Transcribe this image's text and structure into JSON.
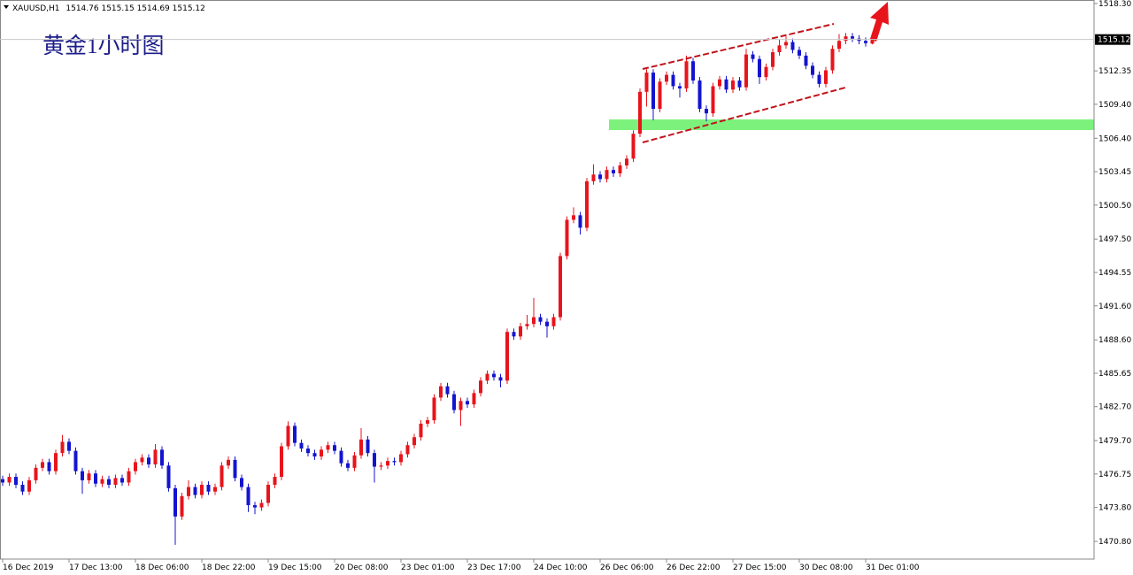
{
  "chart_data": {
    "type": "candlestick",
    "title": "黄金1小时图",
    "symbol": "XAUUSD,H1",
    "up_color": "#e8141c",
    "down_color": "#1414d0",
    "support_color": "#7cf27c",
    "ylim": [
      1469.24,
      1518.61
    ],
    "yticks": [
      {
        "value": 1518.3,
        "label": "1518.30"
      },
      1512.35,
      {
        "value": 1509.4,
        "label": "1509.40"
      },
      {
        "value": 1506.4,
        "label": "1506.40"
      },
      1503.45,
      {
        "value": 1500.5,
        "label": "1500.50"
      },
      {
        "value": 1497.5,
        "label": "1497.50"
      },
      1494.55,
      {
        "value": 1491.6,
        "label": "1491.60"
      },
      {
        "value": 1488.6,
        "label": "1488.60"
      },
      1485.65,
      {
        "value": 1482.7,
        "label": "1482.70"
      },
      {
        "value": 1479.7,
        "label": "1479.70"
      },
      1476.75,
      {
        "value": 1473.8,
        "label": "1473.80"
      },
      {
        "value": 1470.8,
        "label": "1470.80"
      }
    ],
    "categories": [
      "16 Dec 2019",
      null,
      null,
      null,
      null,
      null,
      null,
      null,
      null,
      null,
      "17 Dec 13:00",
      null,
      null,
      null,
      null,
      null,
      null,
      null,
      null,
      null,
      "18 Dec 06:00",
      null,
      null,
      null,
      null,
      null,
      null,
      null,
      null,
      null,
      "18 Dec 22:00",
      null,
      null,
      null,
      null,
      null,
      null,
      null,
      null,
      null,
      "19 Dec 15:00",
      null,
      null,
      null,
      null,
      null,
      null,
      null,
      null,
      null,
      "20 Dec 08:00",
      null,
      null,
      null,
      null,
      null,
      null,
      null,
      null,
      null,
      "23 Dec 01:00",
      null,
      null,
      null,
      null,
      null,
      null,
      null,
      null,
      null,
      "23 Dec 17:00",
      null,
      null,
      null,
      null,
      null,
      null,
      null,
      null,
      null,
      "24 Dec 10:00",
      null,
      null,
      null,
      null,
      null,
      null,
      null,
      null,
      null,
      "26 Dec 06:00",
      null,
      null,
      null,
      null,
      null,
      null,
      null,
      null,
      null,
      "26 Dec 22:00",
      null,
      null,
      null,
      null,
      null,
      null,
      null,
      null,
      null,
      "27 Dec 15:00",
      null,
      null,
      null,
      null,
      null,
      null,
      null,
      null,
      null,
      "30 Dec 08:00",
      null,
      null,
      null,
      null,
      null,
      null,
      null,
      null,
      null,
      "31 Dec 01:00",
      null
    ],
    "open": [
      1476.3,
      1476.0,
      1476.5,
      1475.8,
      1475.2,
      1476.2,
      1477.3,
      1477.8,
      1477.0,
      1478.6,
      1479.6,
      1478.8,
      1477.0,
      1476.2,
      1476.8,
      1475.9,
      1476.3,
      1475.8,
      1476.4,
      1476.0,
      1477.0,
      1477.8,
      1478.2,
      1477.6,
      1478.9,
      1477.5,
      1475.5,
      1473.0,
      1474.8,
      1475.6,
      1474.9,
      1475.8,
      1475.2,
      1475.6,
      1477.5,
      1478.0,
      1476.4,
      1475.6,
      1474.0,
      1473.8,
      1474.2,
      1475.8,
      1476.5,
      1479.2,
      1481.0,
      1479.5,
      1479.0,
      1478.6,
      1478.3,
      1478.9,
      1479.3,
      1478.8,
      1477.7,
      1477.3,
      1478.4,
      1479.8,
      1478.6,
      1477.4,
      1477.5,
      1477.9,
      1477.8,
      1478.5,
      1479.3,
      1480.0,
      1481.2,
      1481.5,
      1483.5,
      1484.5,
      1483.8,
      1482.4,
      1483.2,
      1482.9,
      1483.9,
      1485.0,
      1485.6,
      1485.3,
      1485.0,
      1489.3,
      1488.9,
      1489.8,
      1490.0,
      1490.6,
      1490.2,
      1489.8,
      1490.6,
      1496.0,
      1499.2,
      1499.6,
      1498.5,
      1502.6,
      1503.2,
      1502.8,
      1503.6,
      1503.3,
      1504.0,
      1504.6,
      1506.8,
      1510.5,
      1512.2,
      1509.0,
      1511.4,
      1512.0,
      1511.0,
      1510.8,
      1513.2,
      1511.5,
      1509.0,
      1508.6,
      1511.0,
      1511.6,
      1510.7,
      1511.5,
      1510.9,
      1513.8,
      1513.4,
      1511.8,
      1512.7,
      1514.0,
      1514.6,
      1514.9,
      1514.2,
      1513.7,
      1512.8,
      1512.0,
      1511.2,
      1512.4,
      1514.3,
      1515.0,
      1515.4,
      1515.2,
      1515.0,
      1514.76
    ],
    "high": [
      1476.6,
      1476.8,
      1476.8,
      1476.1,
      1476.5,
      1477.6,
      1478.1,
      1478.1,
      1478.9,
      1480.2,
      1479.9,
      1479.1,
      1477.3,
      1477.1,
      1477.1,
      1476.6,
      1476.6,
      1476.7,
      1476.7,
      1477.3,
      1478.1,
      1478.5,
      1478.5,
      1479.4,
      1479.2,
      1477.8,
      1475.8,
      1475.1,
      1476.2,
      1475.9,
      1476.1,
      1476.1,
      1475.9,
      1477.8,
      1478.3,
      1478.3,
      1476.7,
      1475.9,
      1474.3,
      1474.5,
      1476.1,
      1476.8,
      1479.5,
      1481.4,
      1481.3,
      1479.8,
      1479.3,
      1478.9,
      1479.2,
      1479.6,
      1479.6,
      1479.1,
      1478.0,
      1478.7,
      1480.8,
      1480.1,
      1478.9,
      1477.8,
      1478.2,
      1478.2,
      1478.8,
      1479.6,
      1480.3,
      1481.5,
      1481.8,
      1483.8,
      1484.8,
      1484.8,
      1484.1,
      1483.5,
      1483.5,
      1484.2,
      1485.3,
      1485.9,
      1485.9,
      1485.6,
      1489.6,
      1489.6,
      1490.1,
      1490.8,
      1492.3,
      1490.9,
      1490.5,
      1490.9,
      1496.3,
      1499.5,
      1500.3,
      1499.9,
      1502.9,
      1504.1,
      1503.5,
      1503.9,
      1503.9,
      1504.3,
      1504.9,
      1507.1,
      1510.8,
      1512.5,
      1512.5,
      1511.7,
      1512.3,
      1512.3,
      1511.3,
      1513.7,
      1513.5,
      1511.8,
      1509.3,
      1511.3,
      1511.9,
      1511.9,
      1511.8,
      1511.8,
      1514.3,
      1514.1,
      1513.7,
      1513.0,
      1514.3,
      1515.1,
      1515.4,
      1515.2,
      1514.5,
      1514.0,
      1513.1,
      1512.3,
      1512.7,
      1514.6,
      1515.6,
      1515.7,
      1515.7,
      1515.5,
      1515.3,
      1515.15
    ],
    "low": [
      1475.7,
      1475.7,
      1475.5,
      1474.9,
      1474.9,
      1475.9,
      1477.0,
      1476.7,
      1476.7,
      1478.3,
      1478.5,
      1476.7,
      1475.0,
      1475.9,
      1475.6,
      1475.6,
      1475.5,
      1475.5,
      1475.7,
      1475.7,
      1476.7,
      1477.5,
      1477.3,
      1477.3,
      1477.2,
      1475.2,
      1470.5,
      1472.7,
      1474.5,
      1474.6,
      1474.6,
      1474.9,
      1474.9,
      1475.3,
      1477.2,
      1476.1,
      1475.3,
      1473.4,
      1473.2,
      1473.5,
      1473.9,
      1475.5,
      1476.2,
      1478.9,
      1479.2,
      1478.7,
      1478.3,
      1478.0,
      1478.0,
      1478.6,
      1478.5,
      1477.4,
      1477.0,
      1477.0,
      1478.1,
      1478.3,
      1476.0,
      1477.1,
      1477.2,
      1477.5,
      1477.5,
      1478.2,
      1479.0,
      1479.7,
      1480.9,
      1481.2,
      1483.2,
      1483.5,
      1482.1,
      1481.0,
      1482.6,
      1482.6,
      1483.6,
      1484.7,
      1485.0,
      1484.4,
      1484.7,
      1488.6,
      1488.6,
      1489.5,
      1489.7,
      1489.9,
      1488.8,
      1489.5,
      1490.3,
      1495.7,
      1498.9,
      1497.9,
      1498.2,
      1502.3,
      1502.5,
      1502.5,
      1503.0,
      1503.0,
      1503.7,
      1504.3,
      1506.5,
      1509.2,
      1508.0,
      1508.7,
      1511.1,
      1510.7,
      1510.0,
      1510.5,
      1511.2,
      1508.7,
      1507.9,
      1508.3,
      1510.7,
      1510.4,
      1510.4,
      1510.6,
      1510.6,
      1513.1,
      1511.2,
      1511.5,
      1512.4,
      1513.7,
      1514.3,
      1513.9,
      1513.4,
      1512.5,
      1511.7,
      1510.9,
      1510.9,
      1512.1,
      1514.0,
      1514.7,
      1514.9,
      1514.7,
      1514.5,
      1514.69
    ],
    "close": [
      1476.0,
      1476.5,
      1475.8,
      1475.2,
      1476.2,
      1477.3,
      1477.8,
      1477.0,
      1478.6,
      1479.6,
      1478.8,
      1477.0,
      1476.2,
      1476.8,
      1475.9,
      1476.3,
      1475.8,
      1476.4,
      1476.0,
      1477.0,
      1477.8,
      1478.2,
      1477.6,
      1478.9,
      1477.5,
      1475.5,
      1473.0,
      1474.8,
      1475.6,
      1474.9,
      1475.8,
      1475.2,
      1475.6,
      1477.5,
      1478.0,
      1476.4,
      1475.6,
      1474.0,
      1473.8,
      1474.2,
      1475.8,
      1476.5,
      1479.2,
      1481.0,
      1479.5,
      1479.0,
      1478.6,
      1478.3,
      1478.9,
      1479.3,
      1478.8,
      1477.7,
      1477.3,
      1478.4,
      1479.8,
      1478.6,
      1477.4,
      1477.5,
      1477.9,
      1477.8,
      1478.5,
      1479.3,
      1480.0,
      1481.2,
      1481.5,
      1483.5,
      1484.5,
      1483.8,
      1482.4,
      1483.2,
      1482.9,
      1483.9,
      1485.0,
      1485.6,
      1485.3,
      1485.0,
      1489.3,
      1488.9,
      1489.8,
      1490.0,
      1490.6,
      1490.2,
      1489.8,
      1490.6,
      1496.0,
      1499.2,
      1499.6,
      1498.5,
      1502.6,
      1503.2,
      1502.8,
      1503.6,
      1503.3,
      1504.0,
      1504.6,
      1506.8,
      1510.5,
      1512.2,
      1509.0,
      1511.4,
      1512.0,
      1511.0,
      1510.8,
      1513.2,
      1511.5,
      1509.0,
      1508.6,
      1511.0,
      1511.6,
      1510.7,
      1511.5,
      1510.9,
      1513.8,
      1513.4,
      1511.8,
      1512.7,
      1514.0,
      1514.6,
      1514.9,
      1514.2,
      1513.7,
      1512.8,
      1512.0,
      1511.2,
      1512.4,
      1514.3,
      1515.0,
      1515.4,
      1515.2,
      1515.0,
      1514.8,
      1515.12
    ]
  }
}
